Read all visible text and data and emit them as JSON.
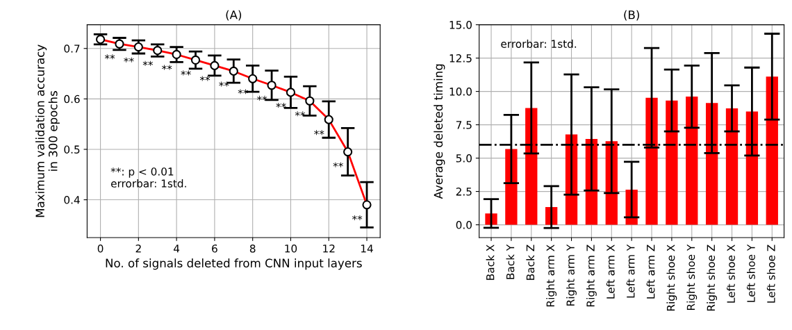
{
  "chart_data": [
    {
      "type": "line",
      "title": "(A)",
      "xlabel": "No. of signals deleted from CNN input layers",
      "ylabel": "Maximum validation accuracy\nin 300 epochs",
      "x": [
        0,
        1,
        2,
        3,
        4,
        5,
        6,
        7,
        8,
        9,
        10,
        11,
        12,
        13,
        14
      ],
      "series": [
        {
          "color": "#ff0000",
          "values": [
            0.718,
            0.709,
            0.703,
            0.696,
            0.688,
            0.677,
            0.666,
            0.655,
            0.64,
            0.627,
            0.613,
            0.596,
            0.559,
            0.495,
            0.39
          ],
          "errors": [
            0.01,
            0.012,
            0.013,
            0.012,
            0.015,
            0.017,
            0.02,
            0.023,
            0.026,
            0.029,
            0.031,
            0.029,
            0.036,
            0.047,
            0.045
          ]
        }
      ],
      "marker": "circle",
      "grid": true,
      "legend": false,
      "xlim": [
        -0.7,
        14.7
      ],
      "xticks": [
        0,
        2,
        4,
        6,
        8,
        10,
        12,
        14
      ],
      "ylim": [
        0.325,
        0.747
      ],
      "yticks": [
        0.4,
        0.5,
        0.6,
        0.7
      ],
      "annotations": [
        {
          "text": "**",
          "x": 1,
          "y": 0.709
        },
        {
          "text": "**",
          "x": 2,
          "y": 0.703
        },
        {
          "text": "**",
          "x": 3,
          "y": 0.696
        },
        {
          "text": "**",
          "x": 4,
          "y": 0.688
        },
        {
          "text": "**",
          "x": 5,
          "y": 0.677
        },
        {
          "text": "**",
          "x": 6,
          "y": 0.666
        },
        {
          "text": "**",
          "x": 7,
          "y": 0.655
        },
        {
          "text": "**",
          "x": 8,
          "y": 0.64
        },
        {
          "text": "**",
          "x": 9,
          "y": 0.627
        },
        {
          "text": "**",
          "x": 10,
          "y": 0.613
        },
        {
          "text": "**",
          "x": 11,
          "y": 0.596
        },
        {
          "text": "**",
          "x": 12,
          "y": 0.559
        },
        {
          "text": "**",
          "x": 13,
          "y": 0.495
        },
        {
          "text": "**",
          "x": 14,
          "y": 0.39
        },
        "**: p < 0.01\nerrorbar: 1std."
      ]
    },
    {
      "type": "bar",
      "title": "(B)",
      "ylabel": "Average deleted timing",
      "categories": [
        "Back X",
        "Back Y",
        "Back Z",
        "Right arm X",
        "Right arm Y",
        "Right arm Z",
        "Left arm X",
        "Left arm Y",
        "Left arm Z",
        "Right shoe X",
        "Right shoe Y",
        "Right shoe Z",
        "Left shoe X",
        "Left shoe Y",
        "Left shoe Z"
      ],
      "series": [
        {
          "color": "#ff0000",
          "values": [
            0.85,
            5.68,
            8.76,
            1.33,
            6.77,
            6.44,
            6.27,
            2.64,
            9.52,
            9.32,
            9.61,
            9.13,
            8.73,
            8.49,
            11.11
          ],
          "errors": [
            1.07,
            2.56,
            3.41,
            1.57,
            4.51,
            3.87,
            3.89,
            2.08,
            3.73,
            2.32,
            2.33,
            3.75,
            1.73,
            3.3,
            3.22
          ]
        }
      ],
      "grid": true,
      "legend": false,
      "ylim": [
        -0.96,
        15.0
      ],
      "yticks": [
        {
          "value": 0,
          "label": "0.0"
        },
        2.5,
        {
          "value": 5,
          "label": "5.0"
        },
        7.5,
        {
          "value": 10,
          "label": "10.0"
        },
        12.5,
        {
          "value": 15,
          "label": "15.0"
        }
      ],
      "ref_lines": [
        {
          "axis": "y",
          "value": 6.0,
          "color": "#000000",
          "line_style": "dashdot"
        }
      ],
      "annotations": [
        "errorbar: 1std."
      ]
    }
  ]
}
